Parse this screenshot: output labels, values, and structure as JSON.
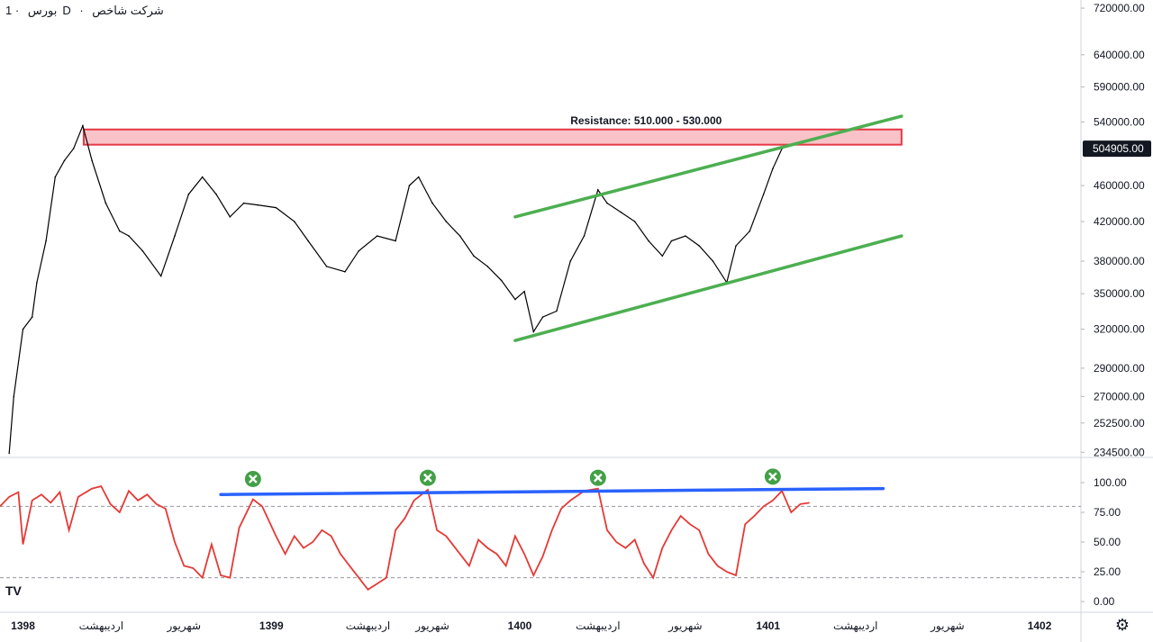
{
  "header": {
    "symbol": "بورس",
    "interval": "1D",
    "title": "شرکت شاخص"
  },
  "chart_data": [
    {
      "type": "line",
      "panel": "price",
      "scale": "log",
      "ylim": [
        232000,
        735000
      ],
      "y_ticks": [
        "720000.00",
        "640000.00",
        "590000.00",
        "540000.00",
        "460000.00",
        "420000.00",
        "380000.00",
        "350000.00",
        "320000.00",
        "290000.00",
        "270000.00",
        "252500.00",
        "234500.00"
      ],
      "last_value": "504905.00",
      "annotation": "Resistance: 510.000 - 530.000",
      "resistance_zone": [
        510000,
        530000
      ],
      "series": [
        {
          "color": "#000000",
          "points": [
            [
              0.02,
              234000
            ],
            [
              0.03,
              270000
            ],
            [
              0.05,
              320000
            ],
            [
              0.07,
              330000
            ],
            [
              0.08,
              360000
            ],
            [
              0.1,
              400000
            ],
            [
              0.12,
              470000
            ],
            [
              0.14,
              490000
            ],
            [
              0.16,
              505000
            ],
            [
              0.18,
              535000
            ],
            [
              0.2,
              490000
            ],
            [
              0.23,
              440000
            ],
            [
              0.26,
              410000
            ],
            [
              0.28,
              405000
            ],
            [
              0.31,
              390000
            ],
            [
              0.35,
              366000
            ],
            [
              0.38,
              405000
            ],
            [
              0.41,
              450000
            ],
            [
              0.44,
              470000
            ],
            [
              0.47,
              450000
            ],
            [
              0.5,
              425000
            ],
            [
              0.53,
              440000
            ],
            [
              0.56,
              438000
            ],
            [
              0.6,
              435000
            ],
            [
              0.64,
              420000
            ],
            [
              0.67,
              400000
            ],
            [
              0.71,
              375000
            ],
            [
              0.75,
              370000
            ],
            [
              0.78,
              390000
            ],
            [
              0.82,
              405000
            ],
            [
              0.86,
              400000
            ],
            [
              0.89,
              460000
            ],
            [
              0.91,
              470000
            ],
            [
              0.94,
              440000
            ],
            [
              0.97,
              420000
            ],
            [
              1.0,
              405000
            ],
            [
              1.03,
              385000
            ],
            [
              1.06,
              375000
            ],
            [
              1.09,
              362000
            ],
            [
              1.12,
              345000
            ],
            [
              1.14,
              352000
            ],
            [
              1.16,
              318000
            ],
            [
              1.18,
              330000
            ],
            [
              1.21,
              335000
            ],
            [
              1.24,
              380000
            ],
            [
              1.27,
              405000
            ],
            [
              1.3,
              455000
            ],
            [
              1.32,
              440000
            ],
            [
              1.35,
              430000
            ],
            [
              1.38,
              420000
            ],
            [
              1.41,
              400000
            ],
            [
              1.44,
              385000
            ],
            [
              1.46,
              400000
            ],
            [
              1.49,
              405000
            ],
            [
              1.52,
              395000
            ],
            [
              1.55,
              380000
            ],
            [
              1.58,
              360000
            ],
            [
              1.6,
              395000
            ],
            [
              1.63,
              410000
            ],
            [
              1.66,
              450000
            ],
            [
              1.68,
              480000
            ],
            [
              1.7,
              504905
            ]
          ]
        }
      ],
      "trendlines": [
        {
          "color": "#4caf50",
          "from": [
            1.12,
            425000
          ],
          "to": [
            1.96,
            548000
          ]
        },
        {
          "color": "#4caf50",
          "from": [
            1.12,
            311000
          ],
          "to": [
            1.96,
            405000
          ]
        }
      ]
    },
    {
      "type": "line",
      "panel": "oscillator",
      "ylim": [
        0,
        100
      ],
      "y_ticks": [
        "100.00",
        "75.00",
        "50.00",
        "25.00",
        "0.00"
      ],
      "levels": [
        80,
        20
      ],
      "series": [
        {
          "color": "#e53935",
          "points": [
            [
              0.0,
              80
            ],
            [
              0.02,
              88
            ],
            [
              0.04,
              92
            ],
            [
              0.05,
              48
            ],
            [
              0.07,
              85
            ],
            [
              0.09,
              90
            ],
            [
              0.11,
              83
            ],
            [
              0.13,
              92
            ],
            [
              0.15,
              60
            ],
            [
              0.17,
              88
            ],
            [
              0.2,
              95
            ],
            [
              0.22,
              97
            ],
            [
              0.24,
              82
            ],
            [
              0.26,
              75
            ],
            [
              0.28,
              93
            ],
            [
              0.3,
              85
            ],
            [
              0.32,
              90
            ],
            [
              0.34,
              82
            ],
            [
              0.36,
              78
            ],
            [
              0.38,
              50
            ],
            [
              0.4,
              30
            ],
            [
              0.42,
              28
            ],
            [
              0.44,
              20
            ],
            [
              0.46,
              48
            ],
            [
              0.48,
              22
            ],
            [
              0.5,
              20
            ],
            [
              0.52,
              62
            ],
            [
              0.55,
              86
            ],
            [
              0.57,
              80
            ],
            [
              0.6,
              55
            ],
            [
              0.62,
              40
            ],
            [
              0.64,
              55
            ],
            [
              0.66,
              45
            ],
            [
              0.68,
              50
            ],
            [
              0.7,
              60
            ],
            [
              0.72,
              55
            ],
            [
              0.74,
              40
            ],
            [
              0.76,
              30
            ],
            [
              0.78,
              20
            ],
            [
              0.8,
              10
            ],
            [
              0.82,
              15
            ],
            [
              0.84,
              20
            ],
            [
              0.86,
              60
            ],
            [
              0.88,
              70
            ],
            [
              0.9,
              85
            ],
            [
              0.93,
              94
            ],
            [
              0.95,
              60
            ],
            [
              0.97,
              55
            ],
            [
              1.0,
              40
            ],
            [
              1.02,
              30
            ],
            [
              1.04,
              52
            ],
            [
              1.06,
              45
            ],
            [
              1.08,
              40
            ],
            [
              1.1,
              30
            ],
            [
              1.12,
              55
            ],
            [
              1.14,
              40
            ],
            [
              1.16,
              22
            ],
            [
              1.18,
              38
            ],
            [
              1.2,
              60
            ],
            [
              1.22,
              78
            ],
            [
              1.24,
              85
            ],
            [
              1.27,
              93
            ],
            [
              1.3,
              95
            ],
            [
              1.32,
              60
            ],
            [
              1.34,
              50
            ],
            [
              1.36,
              45
            ],
            [
              1.38,
              52
            ],
            [
              1.4,
              32
            ],
            [
              1.42,
              20
            ],
            [
              1.44,
              45
            ],
            [
              1.46,
              60
            ],
            [
              1.48,
              72
            ],
            [
              1.5,
              65
            ],
            [
              1.52,
              60
            ],
            [
              1.54,
              40
            ],
            [
              1.56,
              30
            ],
            [
              1.58,
              25
            ],
            [
              1.6,
              22
            ],
            [
              1.62,
              65
            ],
            [
              1.64,
              72
            ],
            [
              1.66,
              80
            ],
            [
              1.68,
              85
            ],
            [
              1.7,
              93
            ],
            [
              1.72,
              75
            ],
            [
              1.74,
              82
            ],
            [
              1.76,
              83
            ]
          ]
        }
      ],
      "trendline": {
        "color": "#2962ff",
        "from": [
          0.48,
          90
        ],
        "to": [
          1.92,
          95
        ]
      },
      "markers": [
        {
          "x": 0.55,
          "value": 97,
          "icon": "cross-circle-icon",
          "color": "#43a047"
        },
        {
          "x": 0.93,
          "value": 98,
          "icon": "cross-circle-icon",
          "color": "#43a047"
        },
        {
          "x": 1.3,
          "value": 98,
          "icon": "cross-circle-icon",
          "color": "#43a047"
        },
        {
          "x": 1.68,
          "value": 99,
          "icon": "cross-circle-icon",
          "color": "#43a047"
        }
      ]
    }
  ],
  "x_axis": {
    "labels": [
      {
        "x": 0.05,
        "text": "1398",
        "bold": true
      },
      {
        "x": 0.22,
        "text": "اردیبهشت",
        "bold": false
      },
      {
        "x": 0.4,
        "text": "شهریور",
        "bold": false
      },
      {
        "x": 0.59,
        "text": "1399",
        "bold": true
      },
      {
        "x": 0.8,
        "text": "اردیبهشت",
        "bold": false
      },
      {
        "x": 0.94,
        "text": "شهریور",
        "bold": false
      },
      {
        "x": 1.13,
        "text": "1400",
        "bold": true
      },
      {
        "x": 1.3,
        "text": "اردیبهشت",
        "bold": false
      },
      {
        "x": 1.49,
        "text": "شهریور",
        "bold": false
      },
      {
        "x": 1.67,
        "text": "1401",
        "bold": true
      },
      {
        "x": 1.86,
        "text": "اردیبهشت",
        "bold": false
      },
      {
        "x": 2.06,
        "text": "شهریور",
        "bold": false
      },
      {
        "x": 2.26,
        "text": "1402",
        "bold": true
      }
    ]
  },
  "footer": {
    "logo": "TV",
    "settings_icon": "gear-icon"
  }
}
